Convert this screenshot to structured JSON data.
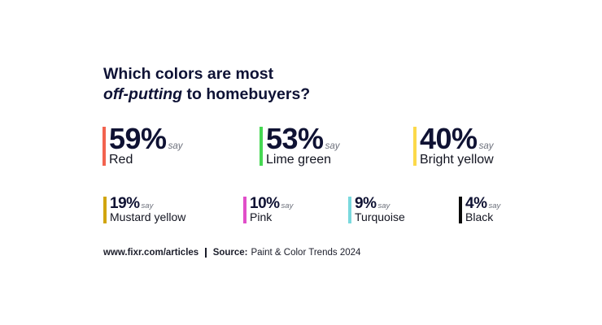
{
  "title": {
    "line1": "Which colors are most",
    "line2_italic": "off-putting",
    "line2_rest": " to homebuyers?"
  },
  "chart_data": {
    "type": "table",
    "title": "Which colors are most off-putting to homebuyers?",
    "unit_suffix": "say",
    "categories": [
      "Red",
      "Lime green",
      "Bright yellow",
      "Mustard yellow",
      "Pink",
      "Turquoise",
      "Black"
    ],
    "values": [
      59,
      53,
      40,
      19,
      10,
      9,
      4
    ],
    "value_labels": [
      "59%",
      "53%",
      "40%",
      "19%",
      "10%",
      "9%",
      "4%"
    ],
    "colors": [
      "#f2634f",
      "#46d853",
      "#fcd94a",
      "#d1a50f",
      "#e14ec9",
      "#7ad9de",
      "#0b0b0b"
    ]
  },
  "say": "say",
  "footer": {
    "url": "www.fixr.com/articles",
    "source_label": "Source:",
    "source_text": "Paint & Color Trends 2024"
  }
}
